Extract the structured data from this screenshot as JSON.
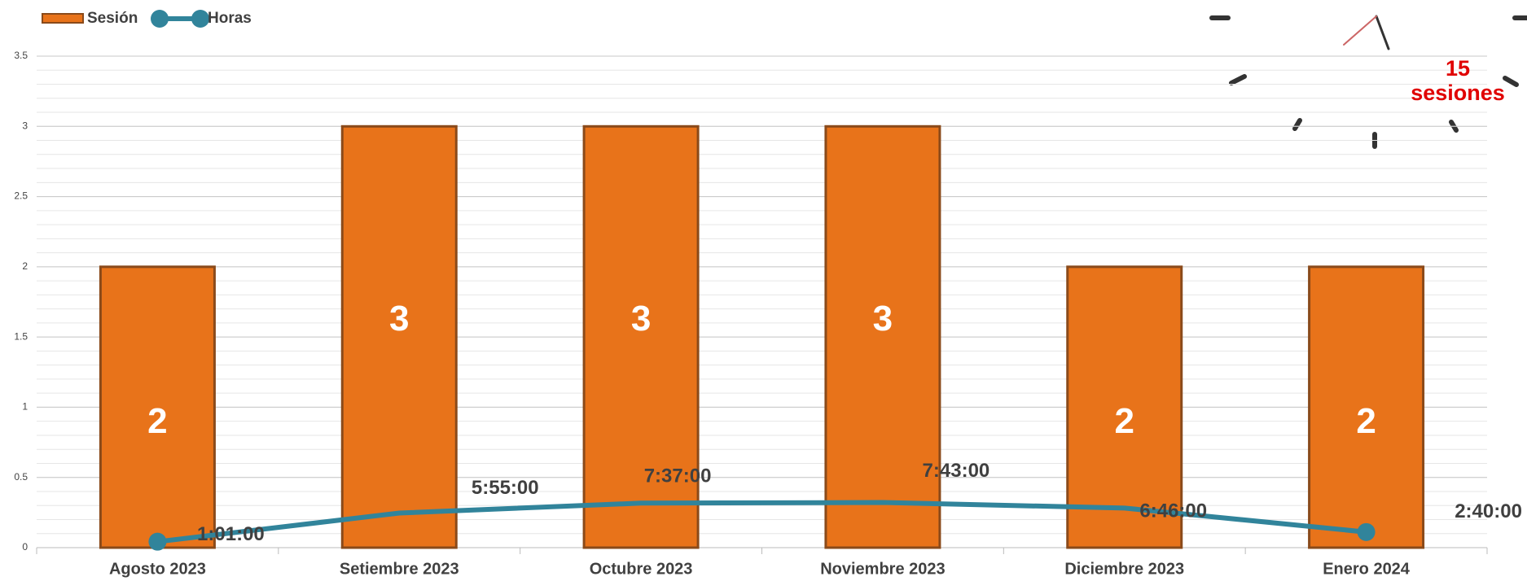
{
  "chart_data": {
    "type": "bar",
    "categories": [
      "Agosto 2023",
      "Setiembre 2023",
      "Octubre 2023",
      "Noviembre 2023",
      "Diciembre 2023",
      "Enero 2024"
    ],
    "series": [
      {
        "name": "Sesión",
        "type": "bar",
        "color": "#e8731a",
        "values": [
          2,
          3,
          3,
          3,
          2,
          2
        ]
      },
      {
        "name": "Horas",
        "type": "line",
        "color": "#31849b",
        "values": [
          0.0424,
          0.2465,
          0.317,
          0.3215,
          0.2819,
          0.1111
        ],
        "value_labels": [
          "1:01:00",
          "5:55:00",
          "7:37:00",
          "7:43:00",
          "6:46:00",
          "2:40:00"
        ]
      }
    ],
    "ylim": [
      0,
      3.5
    ],
    "yticks": [
      0,
      0.5,
      1,
      1.5,
      2,
      2.5,
      3,
      3.5
    ],
    "grid": true,
    "annotation": "15 sesiones"
  }
}
